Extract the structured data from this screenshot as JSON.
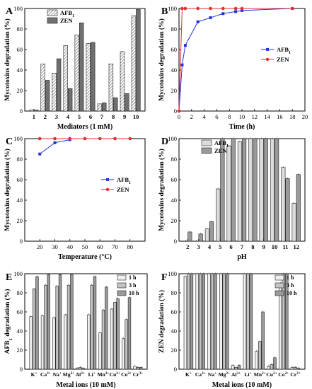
{
  "chart_data": [
    {
      "panel": "A",
      "type": "bar",
      "xlabel": "Mediators (1 mM)",
      "ylabel": "Mycotoxins degradation (%)",
      "ylim": [
        0,
        100
      ],
      "yticks": [
        0,
        20,
        40,
        60,
        80,
        100
      ],
      "categories": [
        "1",
        "2",
        "3",
        "4",
        "5",
        "6",
        "7",
        "8",
        "9",
        "10"
      ],
      "legend": {
        "placement": "top-left"
      },
      "series": [
        {
          "name": "AFB",
          "name_sub": "1",
          "pattern": "hatched",
          "color": "#ffffff",
          "values": [
            1,
            46,
            37,
            64,
            74,
            66,
            7,
            46,
            58,
            93
          ]
        },
        {
          "name": "ZEN",
          "pattern": "solid",
          "color": "#707070",
          "values": [
            1,
            30,
            51,
            22,
            86,
            67,
            8,
            13,
            17,
            99
          ]
        }
      ]
    },
    {
      "panel": "B",
      "type": "line",
      "xlabel": "Time (h)",
      "ylabel": "Mycotoxins degradation (%)",
      "xlim": [
        0,
        20
      ],
      "ylim": [
        0,
        100
      ],
      "xticks": [
        0,
        2,
        4,
        6,
        8,
        10,
        12,
        14,
        16,
        18,
        20
      ],
      "yticks": [
        0,
        20,
        40,
        60,
        80,
        100
      ],
      "legend": {
        "placement": "center-right"
      },
      "series": [
        {
          "name": "AFB",
          "name_sub": "1",
          "color": "#2233dd",
          "marker": "square",
          "x": [
            0,
            0.5,
            1,
            3,
            5,
            7,
            9,
            10,
            18
          ],
          "y": [
            0,
            45,
            64,
            87,
            91,
            95,
            97,
            98,
            100
          ]
        },
        {
          "name": "ZEN",
          "color": "#e03030",
          "marker": "circle",
          "x": [
            0,
            0.5,
            1,
            3,
            5,
            7,
            9,
            10,
            18
          ],
          "y": [
            0,
            100,
            100,
            100,
            100,
            100,
            100,
            100,
            100
          ]
        }
      ]
    },
    {
      "panel": "C",
      "type": "line",
      "xlabel": "Temperature (°C)",
      "ylabel": "Mycotoxins degradation (%)",
      "xlim": [
        10,
        90
      ],
      "ylim": [
        0,
        100
      ],
      "xticks": [
        20,
        30,
        40,
        50,
        60,
        70,
        80
      ],
      "yticks": [
        0,
        20,
        40,
        60,
        80,
        100
      ],
      "legend": {
        "placement": "center-right"
      },
      "series": [
        {
          "name": "AFB",
          "name_sub": "1",
          "color": "#2233dd",
          "marker": "square",
          "x": [
            20,
            30,
            40
          ],
          "y": [
            85,
            96,
            99
          ]
        },
        {
          "name": "ZEN",
          "color": "#e03030",
          "marker": "circle",
          "x": [
            20,
            30,
            40,
            50,
            60,
            70,
            80
          ],
          "y": [
            100,
            100,
            100,
            100,
            100,
            100,
            100
          ]
        }
      ]
    },
    {
      "panel": "D",
      "type": "bar",
      "xlabel": "pH",
      "ylabel": "Mycotoxins degradation (%)",
      "ylim": [
        0,
        100
      ],
      "yticks": [
        0,
        20,
        40,
        60,
        80,
        100
      ],
      "categories": [
        "2",
        "3",
        "4",
        "5",
        "6",
        "7",
        "8",
        "9",
        "10",
        "11",
        "12"
      ],
      "legend": {
        "placement": "top-left"
      },
      "series": [
        {
          "name": "AFB",
          "name_sub": "1",
          "color": "#dcdcdc",
          "values": [
            0,
            0,
            12,
            51,
            93,
            97,
            100,
            100,
            100,
            72,
            37
          ]
        },
        {
          "name": "ZEN",
          "color": "#9a9a9a",
          "values": [
            9,
            7,
            19,
            100,
            100,
            100,
            100,
            100,
            100,
            61,
            65
          ]
        }
      ]
    },
    {
      "panel": "E",
      "type": "bar",
      "xlabel": "Metal ions (10 mM)",
      "ylabel": "AFB",
      "ylabel_sub": "1",
      "ylabel_rest": " degradation (%)",
      "ylim": [
        0,
        100
      ],
      "yticks": [
        0,
        20,
        40,
        60,
        80,
        100
      ],
      "categories": [
        {
          "base": "K",
          "sup": "+"
        },
        {
          "base": "Ca",
          "sup": "2+"
        },
        {
          "base": "Na",
          "sup": "+"
        },
        {
          "base": "Mg",
          "sup": "2+"
        },
        {
          "base": "Al",
          "sup": "3+"
        },
        {
          "base": "Li",
          "sup": "+"
        },
        {
          "base": "Mn",
          "sup": "2+"
        },
        {
          "base": "Cu",
          "sup": "2+"
        },
        {
          "base": "Co",
          "sup": "2+"
        },
        {
          "base": "Cr",
          "sup": "3+"
        }
      ],
      "legend": {
        "placement": "top-right"
      },
      "series": [
        {
          "name": "1 h",
          "color": "#eeeeee",
          "values": [
            55,
            56,
            54,
            57,
            1,
            57,
            38,
            63,
            32,
            3
          ]
        },
        {
          "name": "3 h",
          "color": "#c4c4c4",
          "values": [
            84,
            88,
            87,
            88,
            2,
            88,
            62,
            70,
            52,
            2
          ]
        },
        {
          "name": "10 h",
          "color": "#9a9a9a",
          "values": [
            97,
            99,
            99,
            99,
            1,
            97,
            86,
            74,
            75,
            2
          ]
        }
      ]
    },
    {
      "panel": "F",
      "type": "bar",
      "xlabel": "Metal ions (10 mM)",
      "ylabel": "ZEN degradation (%)",
      "ylim": [
        0,
        100
      ],
      "yticks": [
        0,
        20,
        40,
        60,
        80,
        100
      ],
      "categories": [
        {
          "base": "K",
          "sup": "+"
        },
        {
          "base": "Ca",
          "sup": "2+"
        },
        {
          "base": "Na",
          "sup": "+"
        },
        {
          "base": "Mg",
          "sup": "2+"
        },
        {
          "base": "Al",
          "sup": "3+"
        },
        {
          "base": "Li",
          "sup": "+"
        },
        {
          "base": "Mn",
          "sup": "2+"
        },
        {
          "base": "Cu",
          "sup": "2+"
        },
        {
          "base": "Co",
          "sup": "2+"
        },
        {
          "base": "Cr",
          "sup": "3+"
        }
      ],
      "legend": {
        "placement": "top-right"
      },
      "series": [
        {
          "name": "1 h",
          "color": "#eeeeee",
          "values": [
            97,
            100,
            100,
            100,
            4,
            100,
            19,
            3,
            90,
            2
          ]
        },
        {
          "name": "3 h",
          "color": "#c4c4c4",
          "values": [
            100,
            100,
            100,
            100,
            2,
            100,
            29,
            5,
            100,
            2
          ]
        },
        {
          "name": "10 h",
          "color": "#9a9a9a",
          "values": [
            100,
            100,
            100,
            100,
            4,
            100,
            60,
            12,
            100,
            1
          ]
        }
      ]
    }
  ]
}
